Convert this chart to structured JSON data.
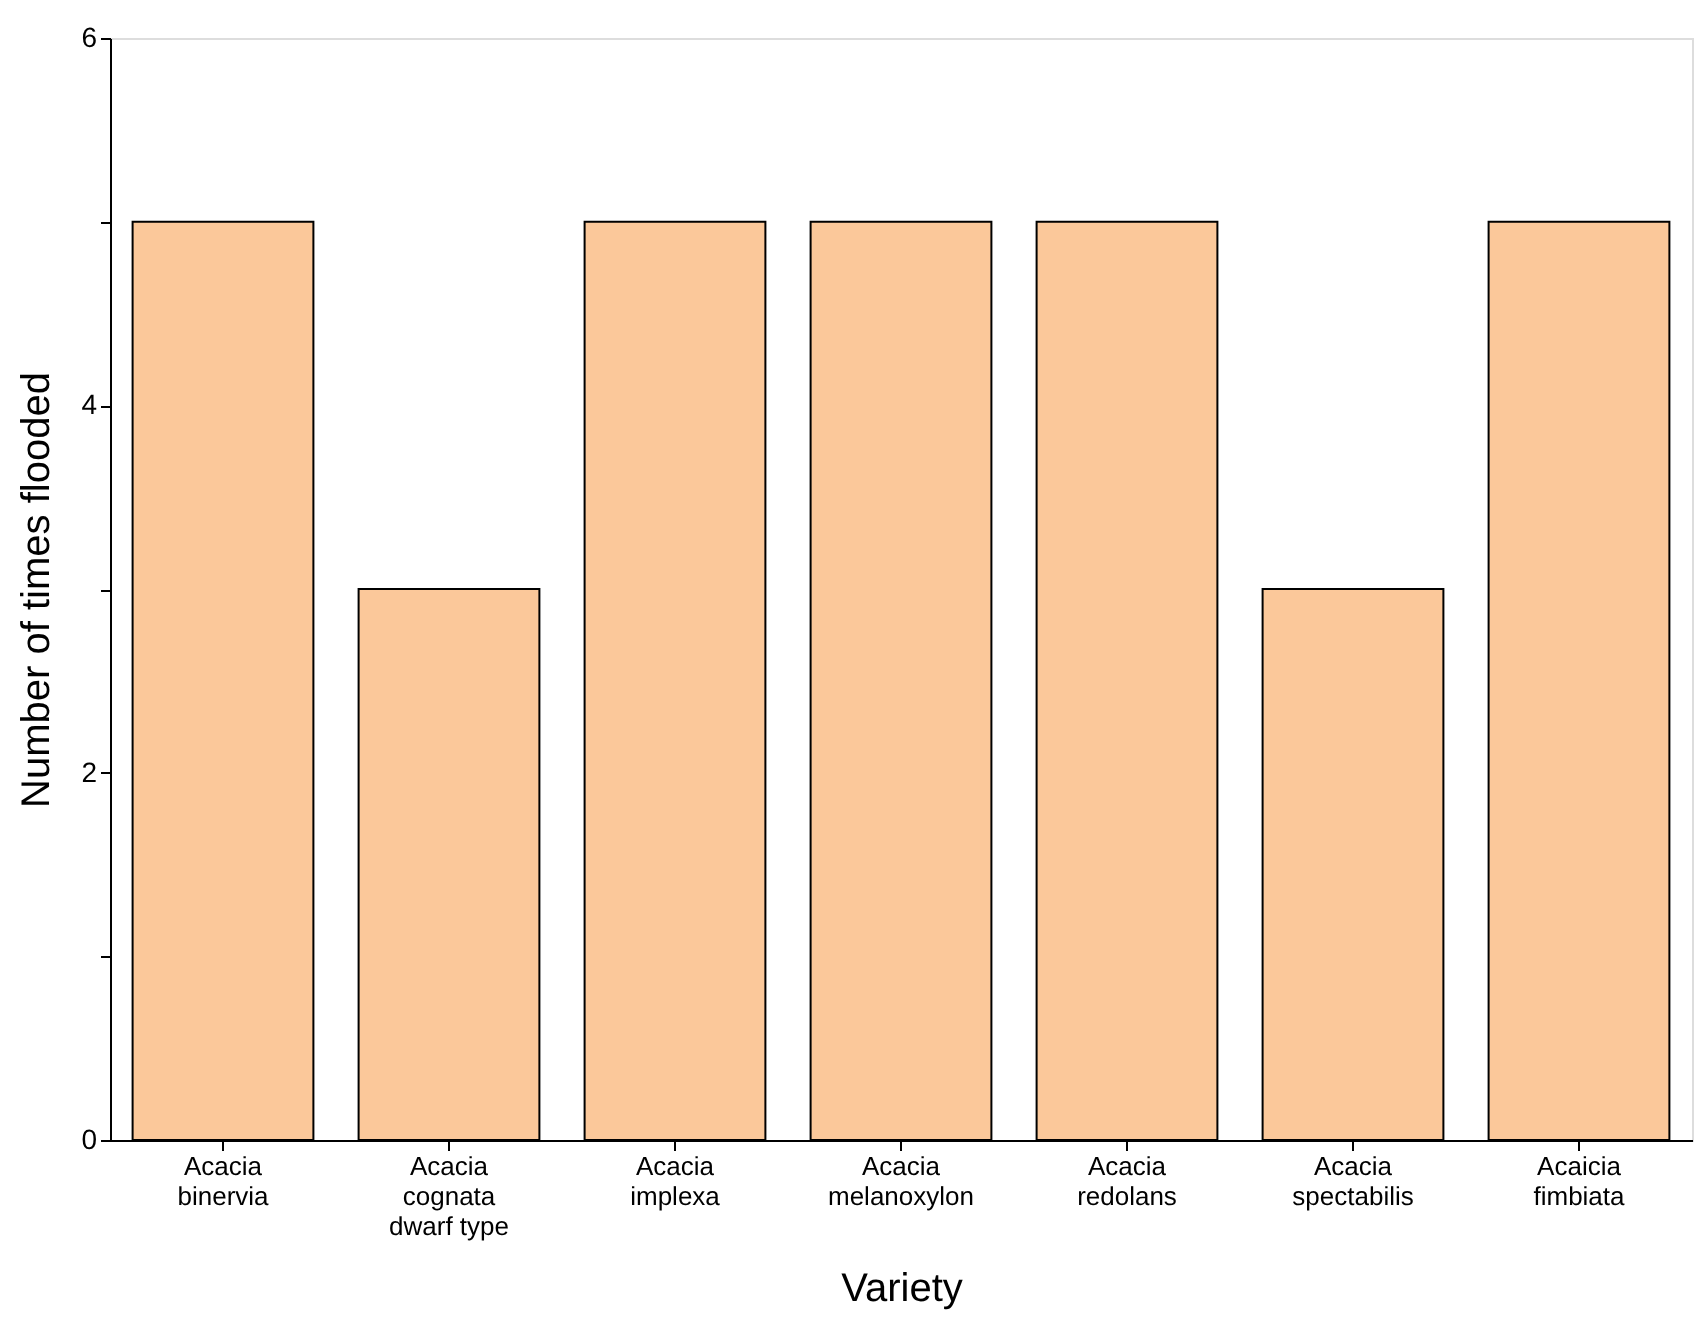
{
  "chart_data": {
    "type": "bar",
    "xlabel": "Variety",
    "ylabel": "Number of times flooded",
    "categories": [
      "Acacia\nbinervia",
      "Acacia\ncognata\ndwarf type",
      "Acacia\nimplexa",
      "Acacia\nmelanoxylon",
      "Acacia\nredolans",
      "Acacia\nspectabilis",
      "Acaicia\nfimbiata"
    ],
    "values": [
      5,
      3,
      5,
      5,
      5,
      3,
      5
    ],
    "color": "#fbc89a",
    "ylim": [
      0,
      6
    ],
    "yticks": [
      0,
      {
        "value": 1,
        "label": null
      },
      2,
      {
        "value": 3,
        "label": null
      },
      4,
      {
        "value": 5,
        "label": null
      },
      6
    ],
    "grid": false
  }
}
